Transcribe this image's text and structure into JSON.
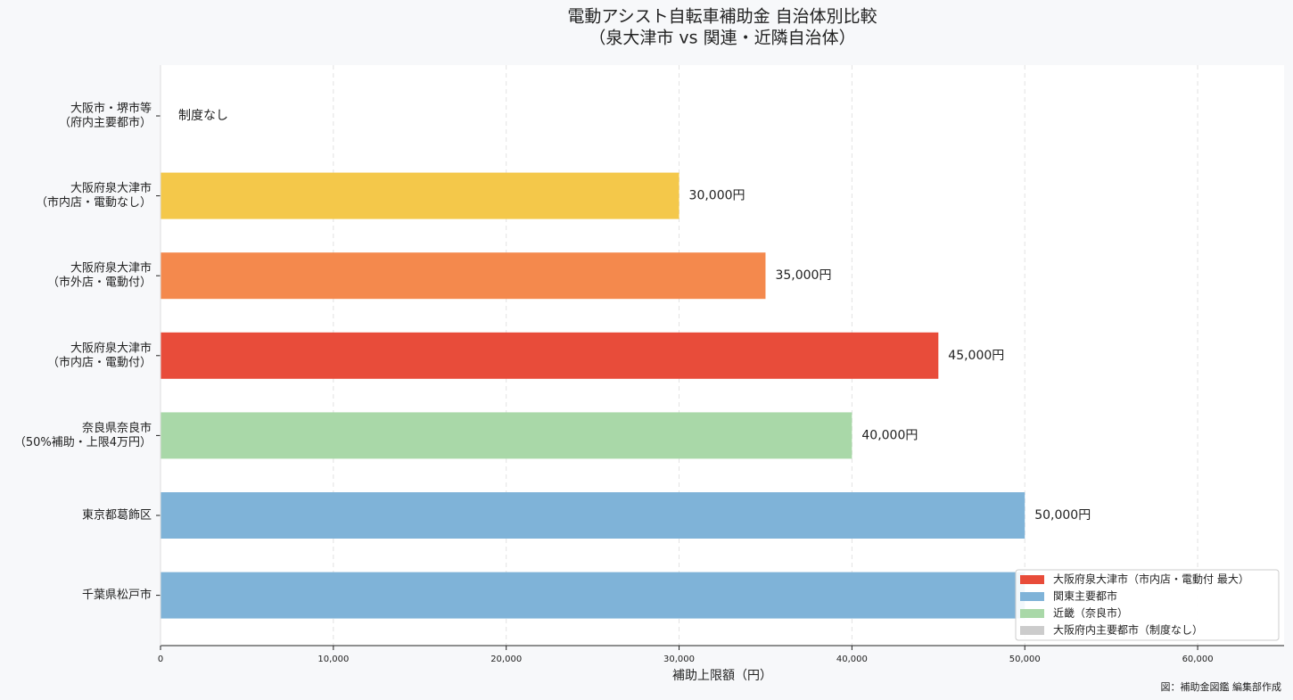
{
  "chart_data": {
    "type": "barh",
    "title": "電動アシスト自転車補助金 自治体別比較",
    "subtitle": "（泉大津市 vs 関連・近隣自治体）",
    "x_label": "補助上限額（円）",
    "source": "図：補助金図鑑 編集部作成",
    "categories": [
      [
        "大阪市・堺市等",
        "（府内主要都市）"
      ],
      [
        "大阪府泉大津市",
        "（市内店・電動なし）"
      ],
      [
        "大阪府泉大津市",
        "（市外店・電動付）"
      ],
      [
        "大阪府泉大津市",
        "（市内店・電動付）"
      ],
      [
        "奈良県奈良市",
        "（50%補助・上限4万円）"
      ],
      [
        "東京都葛飾区"
      ],
      [
        "千葉県松戸市"
      ]
    ],
    "values": [
      null,
      30000,
      35000,
      45000,
      40000,
      50000,
      50000
    ],
    "value_labels": [
      "制度なし",
      "30,000円",
      "35,000円",
      "45,000円",
      "40,000円",
      "50,000円",
      null
    ],
    "colors": [
      "#cccccc",
      "#f4c84a",
      "#f4894d",
      "#e84c3a",
      "#a9d8a8",
      "#7fb3d8",
      "#7fb3d8"
    ],
    "xlim": [
      0,
      65000
    ],
    "xticks": [
      0,
      {
        "value": 10000,
        "label": "10,000"
      },
      {
        "value": 20000,
        "label": "20,000"
      },
      {
        "value": 30000,
        "label": "30,000"
      },
      {
        "value": 40000,
        "label": "40,000"
      },
      {
        "value": 50000,
        "label": "50,000"
      },
      {
        "value": 60000,
        "label": "60,000"
      }
    ],
    "grid": true,
    "legend_position": "lower right",
    "legend": [
      {
        "label": "大阪府泉大津市（市内店・電動付 最大）",
        "color": "#e84c3a"
      },
      {
        "label": "関東主要都市",
        "color": "#7fb3d8"
      },
      {
        "label": "近畿（奈良市）",
        "color": "#a9d8a8"
      },
      {
        "label": "大阪府内主要都市（制度なし）",
        "color": "#cccccc"
      }
    ]
  }
}
